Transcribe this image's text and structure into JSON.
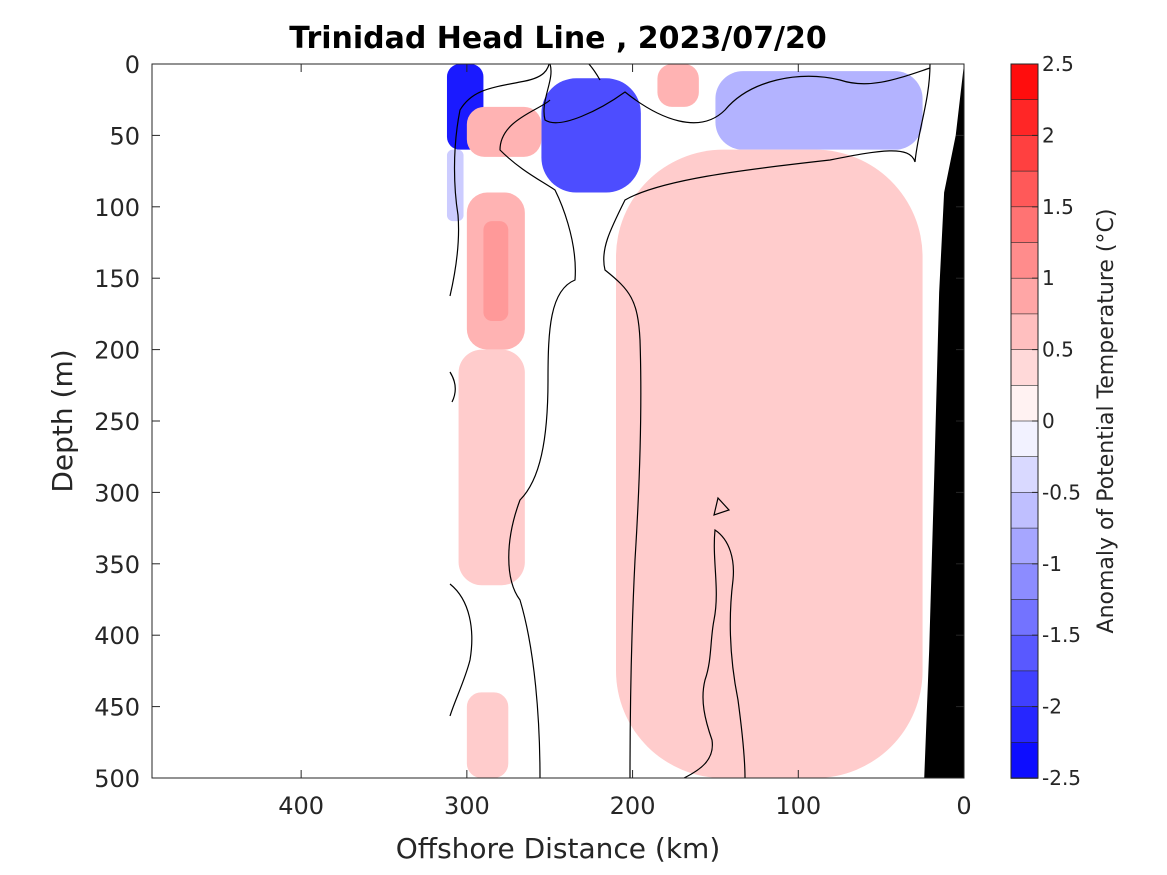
{
  "chart_data": {
    "type": "heatmap",
    "title": "Trinidad Head Line , 2023/07/20",
    "xlabel": "Offshore Distance (km)",
    "ylabel": "Depth (m)",
    "xlim": [
      490,
      0
    ],
    "ylim": [
      0,
      500
    ],
    "x_reversed": true,
    "y_reversed": true,
    "x_ticks": [
      400,
      300,
      200,
      100,
      0
    ],
    "y_ticks": [
      0,
      50,
      100,
      150,
      200,
      250,
      300,
      350,
      400,
      450,
      500
    ],
    "colorbar": {
      "label": "Anomaly of Potential Temperature (°C)",
      "range": [
        -2.5,
        2.5
      ],
      "step": 0.25,
      "ticks": [
        -2.5,
        -2,
        -1.5,
        -1,
        -0.5,
        0,
        0.5,
        1,
        1.5,
        2,
        2.5
      ],
      "tick_labels": [
        "-2.5",
        "-2",
        "-1.5",
        "-1",
        "-0.5",
        "0",
        "0.5",
        "1",
        "1.5",
        "2",
        "2.5"
      ],
      "low_color": "#0000ff",
      "mid_color": "#ffffff",
      "high_color": "#ff0000"
    },
    "data_extent_km": [
      0,
      312
    ],
    "bottom_topography_color": "#000000",
    "bottom_topography": [
      [
        0,
        0
      ],
      [
        5,
        50
      ],
      [
        12,
        90
      ],
      [
        15,
        160
      ],
      [
        18,
        290
      ],
      [
        21,
        410
      ],
      [
        24,
        500
      ]
    ],
    "anomaly_regions": [
      {
        "name": "surface cold core offshore",
        "x": [
          290,
          312
        ],
        "y": [
          0,
          60
        ],
        "value": -2.25
      },
      {
        "name": "offshore cold fringe",
        "x": [
          302,
          312
        ],
        "y": [
          60,
          110
        ],
        "value": -0.5
      },
      {
        "name": "subsurface cold core",
        "x": [
          195,
          255
        ],
        "y": [
          10,
          90
        ],
        "value": -1.75
      },
      {
        "name": "nearshore upper cold band",
        "x": [
          25,
          150
        ],
        "y": [
          5,
          60
        ],
        "value": -0.75
      },
      {
        "name": "warm lens near 280 km",
        "x": [
          255,
          300
        ],
        "y": [
          30,
          65
        ],
        "value": 0.75
      },
      {
        "name": "warm column upper",
        "x": [
          265,
          300
        ],
        "y": [
          90,
          200
        ],
        "value": 0.75
      },
      {
        "name": "warm column core",
        "x": [
          275,
          290
        ],
        "y": [
          110,
          180
        ],
        "value": 1.0
      },
      {
        "name": "warm column middle",
        "x": [
          265,
          305
        ],
        "y": [
          200,
          365
        ],
        "value": 0.5
      },
      {
        "name": "warm column deep",
        "x": [
          275,
          300
        ],
        "y": [
          440,
          500
        ],
        "value": 0.5
      },
      {
        "name": "broad nearshore warm region",
        "x": [
          25,
          210
        ],
        "y": [
          60,
          500
        ],
        "value": 0.5
      },
      {
        "name": "surface warm patch",
        "x": [
          160,
          185
        ],
        "y": [
          0,
          30
        ],
        "value": 0.75
      }
    ],
    "contour_levels": [
      0
    ]
  }
}
